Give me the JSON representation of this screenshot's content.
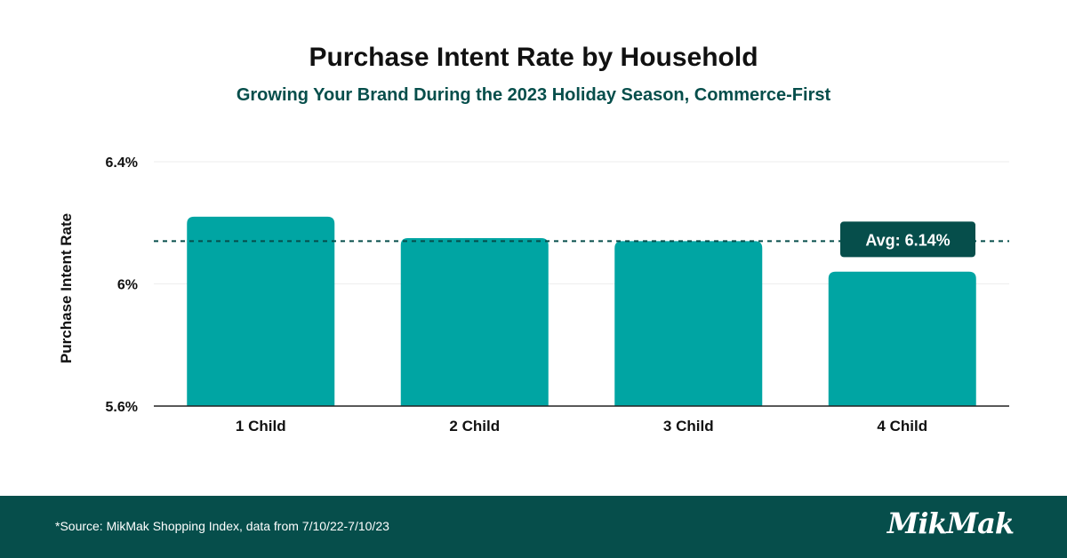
{
  "colors": {
    "bar": "#00a5a3",
    "accent": "#064e4b",
    "footer_bg": "#064e4b",
    "grid": "#eeeeee",
    "text": "#111111"
  },
  "header": {
    "title": "Purchase Intent Rate by Household",
    "subtitle": "Growing Your Brand During the 2023 Holiday Season, Commerce-First"
  },
  "chart_data": {
    "type": "bar",
    "categories": [
      "1 Child",
      "2 Child",
      "3 Child",
      "4 Child"
    ],
    "values": [
      6.22,
      6.15,
      6.14,
      6.04
    ],
    "ylabel": "Purchase Intent Rate",
    "ylim": [
      5.6,
      6.4
    ],
    "yticks": [
      {
        "value": 6.4,
        "label": "6.4%"
      },
      {
        "value": 6.0,
        "label": "6%"
      },
      {
        "value": 5.6,
        "label": "5.6%"
      }
    ],
    "average": {
      "value": 6.14,
      "label": "Avg: 6.14%"
    },
    "grid": true
  },
  "footer": {
    "source": "*Source: MikMak Shopping Index, data from 7/10/22-7/10/23",
    "logo": "MikMak"
  }
}
